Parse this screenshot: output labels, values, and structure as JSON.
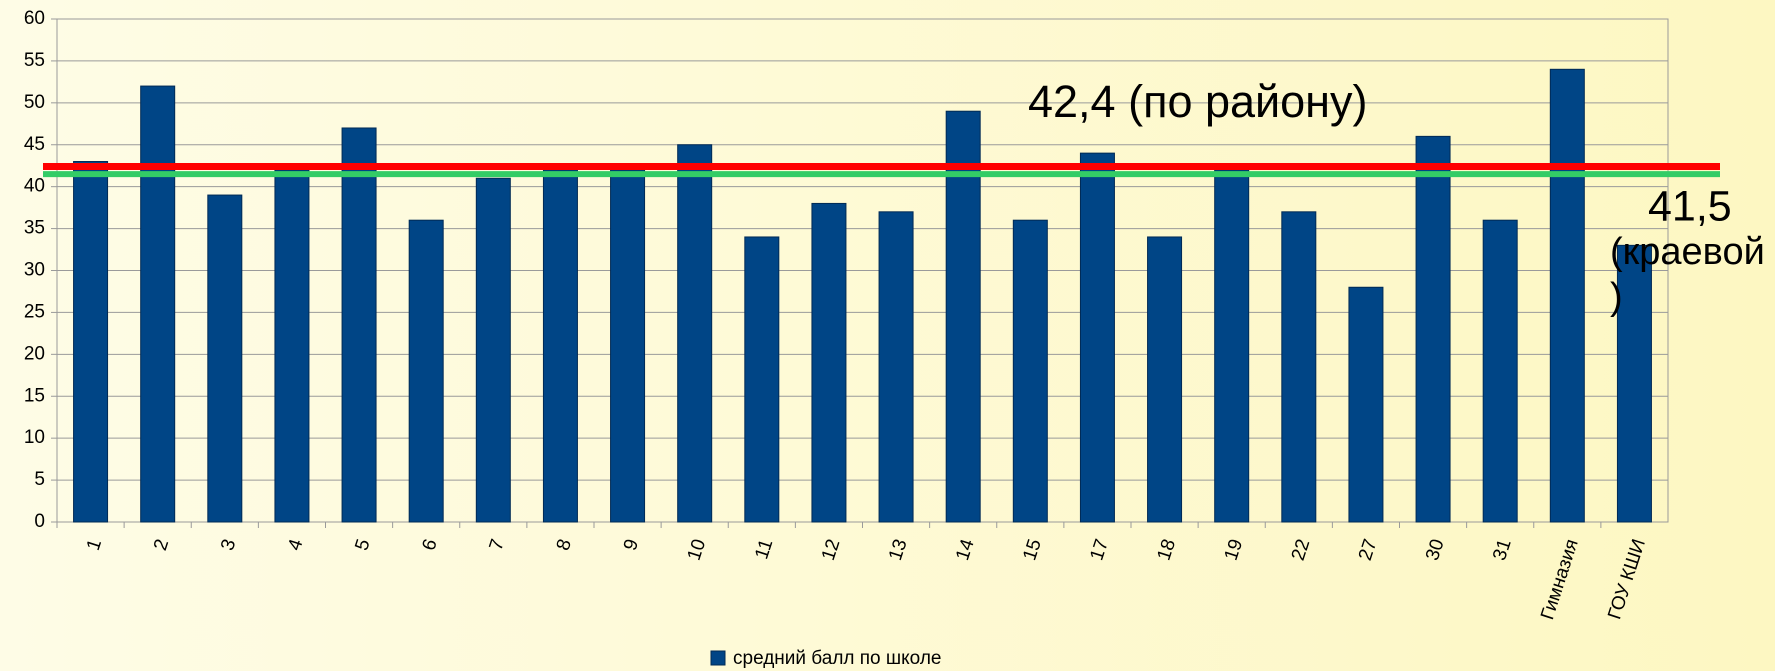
{
  "chart_data": {
    "type": "bar",
    "categories": [
      "1",
      "2",
      "3",
      "4",
      "5",
      "6",
      "7",
      "8",
      "9",
      "10",
      "11",
      "12",
      "13",
      "14",
      "15",
      "17",
      "18",
      "19",
      "22",
      "27",
      "30",
      "31",
      "Гимназия",
      "ГОУ КШИ"
    ],
    "series": [
      {
        "name": "средний балл по школе",
        "color": "#004586",
        "values": [
          43,
          52,
          39,
          42,
          47,
          36,
          41,
          42,
          42,
          45,
          34,
          38,
          37,
          49,
          36,
          44,
          34,
          42,
          37,
          28,
          46,
          36,
          54,
          33
        ]
      }
    ],
    "ylim": [
      0,
      60
    ],
    "yticks": [
      0,
      5,
      10,
      15,
      20,
      25,
      30,
      35,
      40,
      45,
      50,
      55,
      60
    ],
    "grid": true,
    "legend": "bottom",
    "reference_lines": [
      {
        "value": 42.4,
        "color": "#ff0000",
        "text_color": "#7a0000",
        "label": [
          "42,4 (по району)"
        ]
      },
      {
        "value": 41.5,
        "color": "#33cc66",
        "text_color": "#22ee22",
        "label": [
          "41,5",
          "(краевой",
          ")"
        ]
      }
    ]
  }
}
